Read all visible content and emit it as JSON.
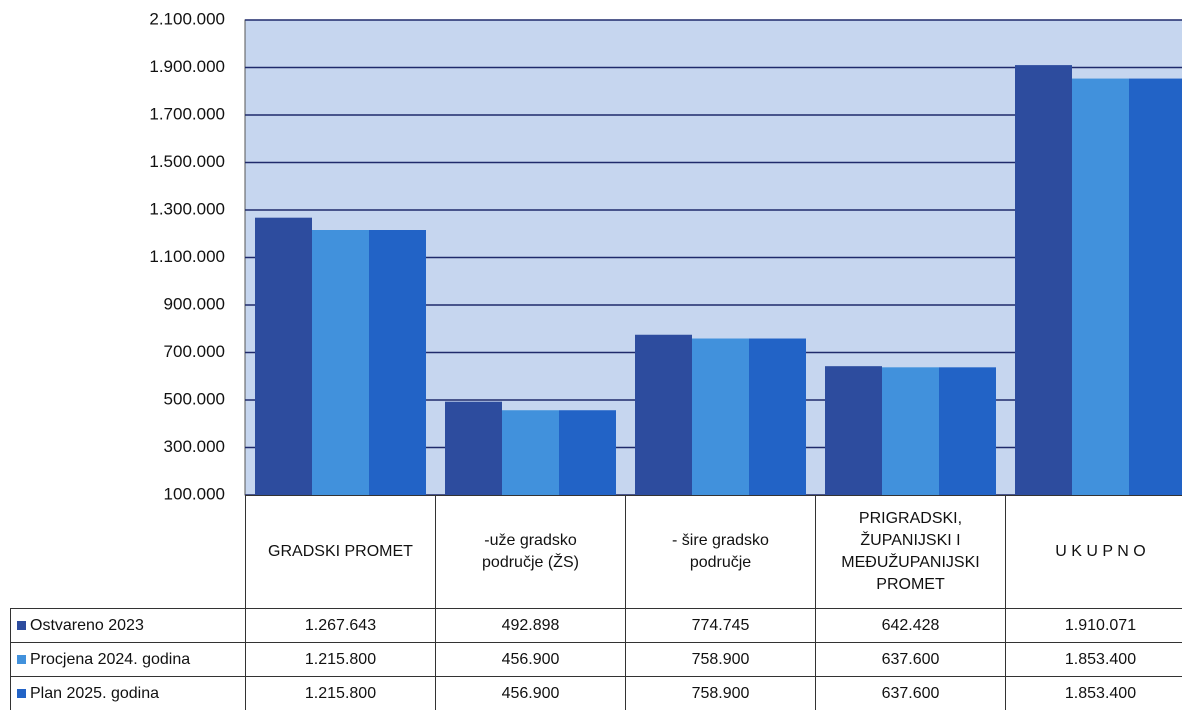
{
  "chart_data": {
    "type": "bar",
    "categories": [
      "GRADSKI PROMET",
      "-uže gradsko područje (ŽS)",
      "- šire gradsko područje",
      "PRIGRADSKI, ŽUPANIJSKI I MEĐUŽUPANIJSKI PROMET",
      "U K U P N O"
    ],
    "series": [
      {
        "name": "Ostvareno 2023",
        "color": "#2d4c9e",
        "values": [
          1267643,
          492898,
          774745,
          642428,
          1910071
        ],
        "value_labels": [
          "1.267.643",
          "492.898",
          "774.745",
          "642.428",
          "1.910.071"
        ]
      },
      {
        "name": "Procjena 2024. godina",
        "color": "#4191dc",
        "values": [
          1215800,
          456900,
          758900,
          637600,
          1853400
        ],
        "value_labels": [
          "1.215.800",
          "456.900",
          "758.900",
          "637.600",
          "1.853.400"
        ]
      },
      {
        "name": "Plan 2025. godina",
        "color": "#2263c6",
        "values": [
          1215800,
          456900,
          758900,
          637600,
          1853400
        ],
        "value_labels": [
          "1.215.800",
          "456.900",
          "758.900",
          "637.600",
          "1.853.400"
        ]
      }
    ],
    "ylim": [
      100000,
      2100000
    ],
    "yticks": [
      {
        "value": 100000,
        "label": "100.000"
      },
      {
        "value": 300000,
        "label": "300.000"
      },
      {
        "value": 500000,
        "label": "500.000"
      },
      {
        "value": 700000,
        "label": "700.000"
      },
      {
        "value": 900000,
        "label": "900.000"
      },
      {
        "value": 1100000,
        "label": "1.100.000"
      },
      {
        "value": 1300000,
        "label": "1.300.000"
      },
      {
        "value": 1500000,
        "label": "1.500.000"
      },
      {
        "value": 1700000,
        "label": "1.700.000"
      },
      {
        "value": 1900000,
        "label": "1.900.000"
      },
      {
        "value": 2100000,
        "label": "2.100.000"
      }
    ],
    "grid": true
  }
}
